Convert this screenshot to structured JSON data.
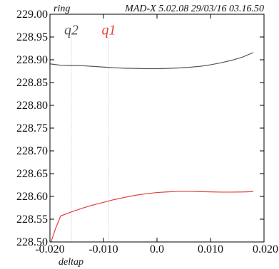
{
  "chart_data": {
    "type": "line",
    "header_left": "ring",
    "header_right": "MAD-X 5.02.08  29/03/16 03.16.50",
    "xlabel": "deltap",
    "ylabel": "",
    "xlim": [
      -0.02,
      0.02
    ],
    "ylim": [
      228.5,
      229.0
    ],
    "x_ticks": [
      {
        "value": -0.02,
        "label": "-0.020"
      },
      {
        "value": -0.01,
        "label": "-0.010"
      },
      {
        "value": 0.0,
        "label": "0.0"
      },
      {
        "value": 0.01,
        "label": "0.010"
      },
      {
        "value": 0.02,
        "label": "0.020"
      }
    ],
    "y_ticks": [
      {
        "value": 229.0,
        "label": "229.00"
      },
      {
        "value": 228.95,
        "label": "228.95"
      },
      {
        "value": 228.9,
        "label": "228.90"
      },
      {
        "value": 228.85,
        "label": "228.85"
      },
      {
        "value": 228.8,
        "label": "228.80"
      },
      {
        "value": 228.75,
        "label": "228.75"
      },
      {
        "value": 228.7,
        "label": "228.70"
      },
      {
        "value": 228.65,
        "label": "228.65"
      },
      {
        "value": 228.6,
        "label": "228.60"
      },
      {
        "value": 228.55,
        "label": "228.55"
      },
      {
        "value": 228.5,
        "label": "228.50"
      }
    ],
    "grid": false,
    "series": [
      {
        "name": "q2",
        "color": "#555555",
        "label_at": [
          -0.016,
          228.965
        ],
        "guide_x": -0.016,
        "points": [
          [
            -0.02,
            228.891
          ],
          [
            -0.018,
            228.888
          ],
          [
            -0.016,
            228.8875
          ],
          [
            -0.014,
            228.887
          ],
          [
            -0.012,
            228.8855
          ],
          [
            -0.01,
            228.884
          ],
          [
            -0.008,
            228.8825
          ],
          [
            -0.006,
            228.8815
          ],
          [
            -0.004,
            228.881
          ],
          [
            -0.002,
            228.8805
          ],
          [
            0.0,
            228.8805
          ],
          [
            0.002,
            228.881
          ],
          [
            0.004,
            228.882
          ],
          [
            0.006,
            228.8835
          ],
          [
            0.008,
            228.8855
          ],
          [
            0.01,
            228.889
          ],
          [
            0.012,
            228.8935
          ],
          [
            0.014,
            228.899
          ],
          [
            0.016,
            228.906
          ],
          [
            0.018,
            228.916
          ]
        ]
      },
      {
        "name": "q1",
        "color": "#e0403a",
        "label_at": [
          -0.009,
          228.965
        ],
        "guide_x": -0.009,
        "points": [
          [
            -0.0198,
            228.5
          ],
          [
            -0.019,
            228.528
          ],
          [
            -0.018,
            228.557
          ],
          [
            -0.016,
            228.566
          ],
          [
            -0.014,
            228.574
          ],
          [
            -0.012,
            228.581
          ],
          [
            -0.01,
            228.587
          ],
          [
            -0.008,
            228.593
          ],
          [
            -0.006,
            228.598
          ],
          [
            -0.004,
            228.6025
          ],
          [
            -0.002,
            228.606
          ],
          [
            0.0,
            228.6085
          ],
          [
            0.002,
            228.61
          ],
          [
            0.004,
            228.611
          ],
          [
            0.006,
            228.611
          ],
          [
            0.008,
            228.6105
          ],
          [
            0.01,
            228.61
          ],
          [
            0.012,
            228.6095
          ],
          [
            0.014,
            228.6095
          ],
          [
            0.016,
            228.6098
          ],
          [
            0.018,
            228.6105
          ]
        ]
      }
    ]
  }
}
